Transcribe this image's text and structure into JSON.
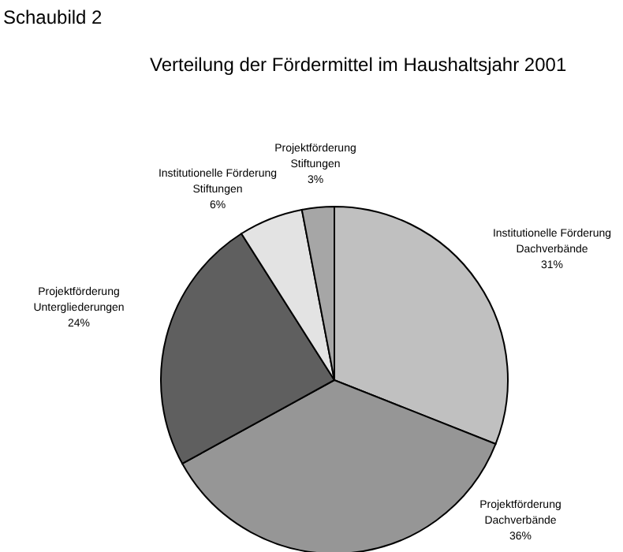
{
  "chart_data": {
    "type": "pie",
    "title": "Verteilung der Fördermittel im Haushaltsjahr 2001",
    "annotations": [
      "Schaubild 2"
    ],
    "categories": [
      "Institutionelle Förderung Dachverbände",
      "Projektförderung Dachverbände",
      "Projektförderung Untergliederungen",
      "Institutionelle Förderung Stiftungen",
      "Projektförderung Stiftungen"
    ],
    "values": [
      31,
      36,
      24,
      6,
      3
    ],
    "value_labels": [
      "31%",
      "36%",
      "24%",
      "6%",
      "3%"
    ],
    "colors": [
      "#c0c0c0",
      "#969696",
      "#5f5f5f",
      "#e3e3e3",
      "#a6a6a6"
    ],
    "legend": false
  }
}
